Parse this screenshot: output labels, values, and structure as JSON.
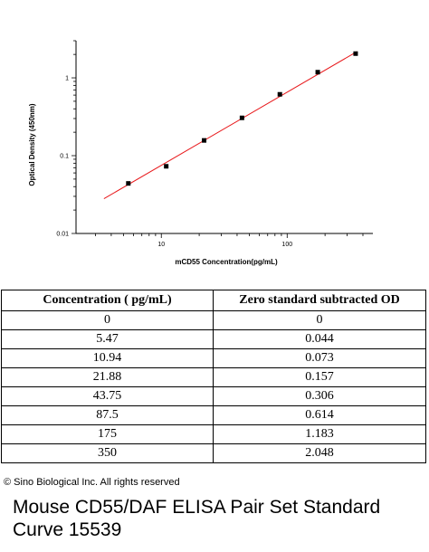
{
  "chart_data": {
    "type": "scatter",
    "xlabel": "mCD55  Concentration(pg/mL)",
    "ylabel": "Optical Density (450nm)",
    "x_scale": "log",
    "y_scale": "log",
    "xlim": [
      2.1,
      480
    ],
    "ylim": [
      0.01,
      3
    ],
    "x_ticks": [
      10,
      100
    ],
    "x_tick_labels": [
      "10",
      "100"
    ],
    "y_ticks": [
      0.01,
      0.1,
      1
    ],
    "y_tick_labels": [
      "0.01",
      "0.1",
      "1"
    ],
    "grid": false,
    "series": [
      {
        "x": [
          5.47,
          10.94,
          21.88,
          43.75,
          87.5,
          175,
          350
        ],
        "y": [
          0.044,
          0.073,
          0.157,
          0.306,
          0.614,
          1.183,
          2.048
        ],
        "color": "#000000"
      }
    ],
    "fit_line": {
      "x": [
        3.5,
        360
      ],
      "y": [
        0.028,
        2.18
      ],
      "color": "#e8191c"
    }
  },
  "table": {
    "headers": [
      "Concentration ( pg/mL)",
      "Zero standard subtracted OD"
    ],
    "rows": [
      [
        "0",
        "0"
      ],
      [
        "5.47",
        "0.044"
      ],
      [
        "10.94",
        "0.073"
      ],
      [
        "21.88",
        "0.157"
      ],
      [
        "43.75",
        "0.306"
      ],
      [
        "87.5",
        "0.614"
      ],
      [
        "175",
        "1.183"
      ],
      [
        "350",
        "2.048"
      ]
    ]
  },
  "copyright": "© Sino Biological Inc. All rights reserved",
  "caption": "Mouse CD55/DAF ELISA Pair Set Standard Curve 15539"
}
